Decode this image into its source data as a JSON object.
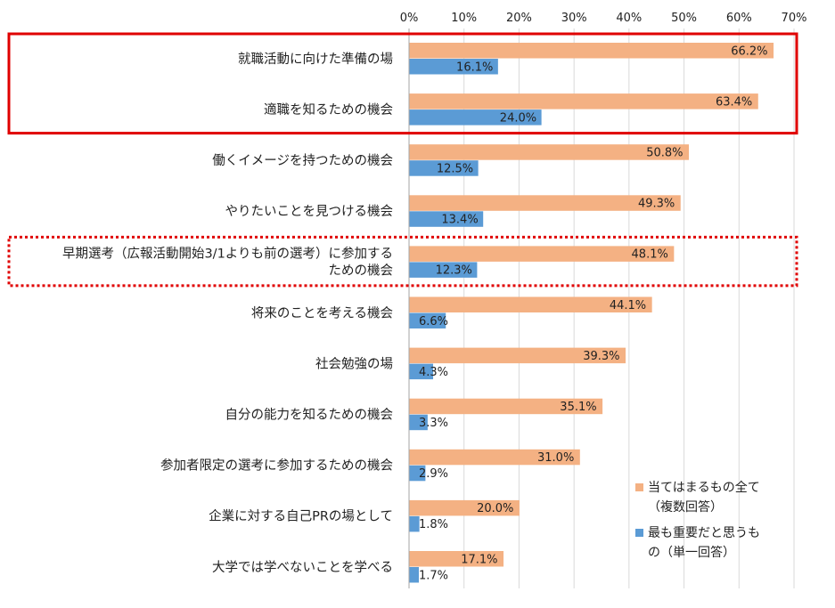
{
  "chart_data": {
    "type": "bar",
    "orientation": "horizontal",
    "xlim": [
      0,
      70
    ],
    "tick_step": 10,
    "tick_labels": [
      "0%",
      "10%",
      "20%",
      "30%",
      "40%",
      "50%",
      "60%",
      "70%"
    ],
    "grid": true,
    "categories": [
      [
        "就職活動に向けた準備の場"
      ],
      [
        "適職を知るための機会"
      ],
      [
        "働くイメージを持つための機会"
      ],
      [
        "やりたいことを見つける機会"
      ],
      [
        "早期選考（広報活動開始3/1よりも前の選考）に参加する",
        "ための機会"
      ],
      [
        "将来のことを考える機会"
      ],
      [
        "社会勉強の場"
      ],
      [
        "自分の能力を知るための機会"
      ],
      [
        "参加者限定の選考に参加するための機会"
      ],
      [
        "企業に対する自己PRの場として"
      ],
      [
        "大学では学べないことを学べる"
      ]
    ],
    "series": [
      {
        "name": "当てはまるもの全て（複数回答）",
        "legend_lines": [
          "当てはまるもの全て",
          "（複数回答）"
        ],
        "color": "#f4b183",
        "values": [
          66.2,
          63.4,
          50.8,
          49.3,
          48.1,
          44.1,
          39.3,
          35.1,
          31.0,
          20.0,
          17.1
        ],
        "labels": [
          "66.2%",
          "63.4%",
          "50.8%",
          "49.3%",
          "48.1%",
          "44.1%",
          "39.3%",
          "35.1%",
          "31.0%",
          "20.0%",
          "17.1%"
        ]
      },
      {
        "name": "最も重要だと思うもの（単一回答）",
        "legend_lines": [
          "最も重要だと思うも",
          "の（単一回答）"
        ],
        "color": "#5b9bd5",
        "values": [
          16.1,
          24.0,
          12.5,
          13.4,
          12.3,
          6.6,
          4.3,
          3.3,
          2.9,
          1.8,
          1.7
        ],
        "labels": [
          "16.1%",
          "24.0%",
          "12.5%",
          "13.4%",
          "12.3%",
          "6.6%",
          "4.3%",
          "3.3%",
          "2.9%",
          "1.8%",
          "1.7%"
        ]
      }
    ],
    "highlights": [
      {
        "style": "solid",
        "color": "#e00000",
        "categories": [
          0,
          1
        ]
      },
      {
        "style": "dotted",
        "color": "#e00000",
        "categories": [
          4
        ]
      }
    ]
  }
}
